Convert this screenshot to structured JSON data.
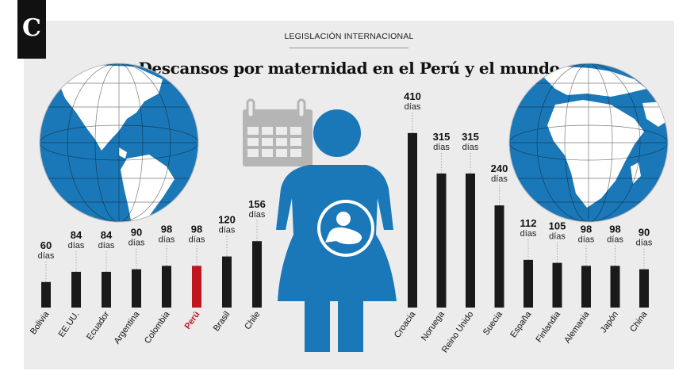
{
  "header": {
    "logo_letter": "C",
    "kicker": "LEGISLACIÓN INTERNACIONAL",
    "title": "Descansos por maternidad en el Perú y el mundo"
  },
  "colors": {
    "bar": "#1a1a1a",
    "highlight": "#c0161e",
    "figure": "#1a78b8",
    "ocean": "#1a78b8",
    "land": "#ffffff",
    "calendar": "#b5b5b5",
    "panel": "#ececec"
  },
  "chart_data": [
    {
      "type": "bar",
      "categories": [
        "Bolivia",
        "EE.UU.",
        "Ecuador",
        "Argentina",
        "Colombia",
        "Perú",
        "Brasil",
        "Chile"
      ],
      "values": [
        60,
        84,
        84,
        90,
        98,
        98,
        120,
        156
      ],
      "value_labels": [
        "60",
        "84",
        "84",
        "90",
        "98",
        "98",
        "120",
        "156"
      ],
      "unit": "días",
      "highlight": "Perú"
    },
    {
      "type": "bar",
      "categories": [
        "Croacia",
        "Noruega",
        "Reino Unido",
        "Suecia",
        "España",
        "Finlandia",
        "Alemania",
        "Japón",
        "China"
      ],
      "values": [
        410,
        315,
        315,
        240,
        112,
        105,
        98,
        98,
        90
      ],
      "value_labels": [
        "410",
        "315",
        "315",
        "240",
        "112",
        "105",
        "98",
        "98",
        "90"
      ],
      "unit": "días"
    }
  ]
}
